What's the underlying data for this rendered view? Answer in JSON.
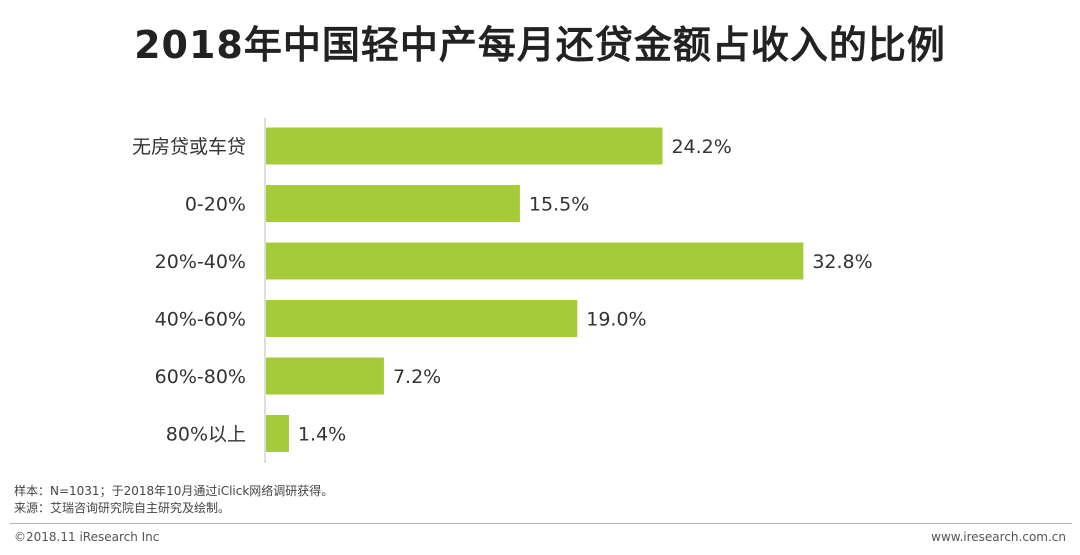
{
  "chart_data": {
    "type": "bar",
    "orientation": "horizontal",
    "title": "2018年中国轻中产每月还贷金额占收入的比例",
    "categories": [
      "无房贷或车贷",
      "0-20%",
      "20%-40%",
      "40%-60%",
      "60%-80%",
      "80%以上"
    ],
    "values": [
      24.2,
      15.5,
      32.8,
      19.0,
      7.2,
      1.4
    ],
    "value_labels": [
      "24.2%",
      "15.5%",
      "32.8%",
      "19.0%",
      "7.2%",
      "1.4%"
    ],
    "xlim": [
      0,
      34
    ],
    "grid": false,
    "bar_color": "#a5cc38"
  },
  "notes": {
    "sample": "样本：N=1031；于2018年10月通过iClick网络调研获得。",
    "source": "来源：艾瑞咨询研究院自主研究及绘制。"
  },
  "footer": {
    "copyright": "©2018.11 iResearch Inc",
    "website": "www.iresearch.com.cn"
  }
}
